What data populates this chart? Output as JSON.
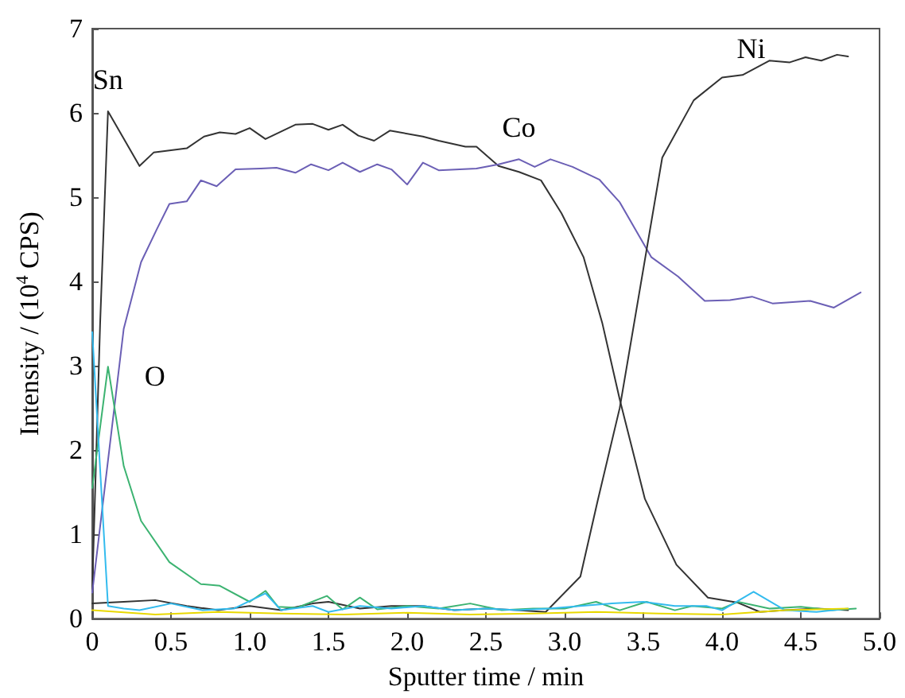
{
  "chart_data": {
    "type": "line",
    "xlabel": "Sputter time / min",
    "ylabel": "Intensity / (10$^{4}$ CPS)",
    "xlim": [
      0,
      5
    ],
    "xticks": [
      0,
      {
        "value": 0.5,
        "label": "0.5"
      },
      {
        "value": 1,
        "label": "1.0"
      },
      {
        "value": 1.5,
        "label": "1.5"
      },
      {
        "value": 2,
        "label": "2.0"
      },
      {
        "value": 2.5,
        "label": "2.5"
      },
      {
        "value": 3,
        "label": "3.0"
      },
      {
        "value": 3.5,
        "label": "3.5"
      },
      {
        "value": 4,
        "label": "4.0"
      },
      {
        "value": 4.5,
        "label": "4.5"
      },
      {
        "value": 5,
        "label": "5.0"
      }
    ],
    "ylim": [
      0,
      7
    ],
    "yticks": [
      0,
      1,
      2,
      3,
      4,
      5,
      6,
      7
    ],
    "grid": false,
    "legend": false,
    "marker": "none",
    "line_style": "solid",
    "series": [
      {
        "name": "Sn",
        "color": "#333333",
        "x": [
          0,
          0.05,
          0.1,
          0.3,
          0.39,
          0.6,
          0.71,
          0.81,
          0.91,
          1.0,
          1.1,
          1.29,
          1.4,
          1.5,
          1.59,
          1.69,
          1.79,
          1.89,
          2.1,
          2.2,
          2.37,
          2.44,
          2.58,
          2.71,
          2.85,
          2.98,
          3.12,
          3.24,
          3.35,
          3.51,
          3.71,
          3.91,
          4.1,
          4.24,
          4.4,
          4.6,
          4.8
        ],
        "values": [
          0.35,
          3.5,
          6.02,
          5.37,
          5.53,
          5.58,
          5.72,
          5.77,
          5.75,
          5.82,
          5.69,
          5.86,
          5.87,
          5.8,
          5.86,
          5.73,
          5.67,
          5.79,
          5.72,
          5.67,
          5.6,
          5.6,
          5.37,
          5.3,
          5.2,
          4.81,
          4.29,
          3.5,
          2.6,
          1.42,
          0.64,
          0.25,
          0.19,
          0.08,
          0.1,
          0.12,
          0.1
        ]
      },
      {
        "name": "Co",
        "color": "#6b5fb5",
        "x": [
          0,
          0.2,
          0.31,
          0.41,
          0.49,
          0.6,
          0.69,
          0.79,
          0.91,
          1.07,
          1.17,
          1.29,
          1.39,
          1.5,
          1.59,
          1.7,
          1.81,
          1.9,
          2.0,
          2.1,
          2.2,
          2.44,
          2.58,
          2.71,
          2.81,
          2.91,
          3.05,
          3.22,
          3.35,
          3.55,
          3.72,
          3.89,
          4.05,
          4.19,
          4.32,
          4.56,
          4.71,
          4.88
        ],
        "values": [
          0.31,
          3.44,
          4.23,
          4.62,
          4.92,
          4.95,
          5.2,
          5.13,
          5.33,
          5.34,
          5.35,
          5.29,
          5.39,
          5.32,
          5.41,
          5.3,
          5.39,
          5.33,
          5.15,
          5.41,
          5.32,
          5.34,
          5.39,
          5.45,
          5.36,
          5.45,
          5.36,
          5.21,
          4.94,
          4.29,
          4.06,
          3.77,
          3.78,
          3.82,
          3.74,
          3.77,
          3.69,
          3.87
        ]
      },
      {
        "name": "Ni",
        "color": "#333333",
        "x": [
          0,
          0.2,
          0.4,
          0.6,
          0.8,
          1.0,
          1.2,
          1.4,
          1.5,
          1.7,
          1.9,
          2.1,
          2.3,
          2.5,
          2.7,
          2.88,
          3.1,
          3.21,
          3.35,
          3.62,
          3.82,
          4.0,
          4.13,
          4.3,
          4.43,
          4.53,
          4.63,
          4.73,
          4.8
        ],
        "values": [
          0.18,
          0.2,
          0.22,
          0.15,
          0.1,
          0.15,
          0.1,
          0.18,
          0.2,
          0.12,
          0.15,
          0.15,
          0.1,
          0.12,
          0.1,
          0.08,
          0.5,
          1.4,
          2.5,
          5.47,
          6.15,
          6.42,
          6.45,
          6.62,
          6.6,
          6.66,
          6.62,
          6.69,
          6.67
        ]
      },
      {
        "name": "O",
        "color": "#3cb371",
        "x": [
          0,
          0.1,
          0.2,
          0.31,
          0.49,
          0.69,
          0.81,
          1.0,
          1.1,
          1.18,
          1.3,
          1.49,
          1.59,
          1.7,
          1.81,
          2.0,
          2.2,
          2.4,
          2.6,
          2.8,
          3.0,
          3.2,
          3.35,
          3.52,
          3.7,
          3.81,
          4.0,
          4.1,
          4.3,
          4.5,
          4.7,
          4.85
        ],
        "values": [
          1.55,
          2.99,
          1.81,
          1.16,
          0.67,
          0.41,
          0.39,
          0.2,
          0.33,
          0.14,
          0.13,
          0.27,
          0.11,
          0.25,
          0.11,
          0.15,
          0.12,
          0.18,
          0.1,
          0.12,
          0.12,
          0.2,
          0.1,
          0.2,
          0.1,
          0.15,
          0.12,
          0.2,
          0.12,
          0.14,
          0.1,
          0.12
        ]
      },
      {
        "color": "#33bbee",
        "x": [
          0,
          0.1,
          0.2,
          0.3,
          0.5,
          0.7,
          0.9,
          1.1,
          1.2,
          1.4,
          1.5,
          1.7,
          1.9,
          2.1,
          2.3,
          2.5,
          2.7,
          2.9,
          3.1,
          3.3,
          3.5,
          3.7,
          3.9,
          4.0,
          4.2,
          4.4,
          4.6,
          4.8
        ],
        "values": [
          3.4,
          0.15,
          0.12,
          0.1,
          0.18,
          0.1,
          0.12,
          0.3,
          0.1,
          0.15,
          0.08,
          0.15,
          0.12,
          0.15,
          0.1,
          0.12,
          0.1,
          0.12,
          0.15,
          0.18,
          0.2,
          0.15,
          0.15,
          0.1,
          0.32,
          0.1,
          0.08,
          0.12
        ]
      },
      {
        "color": "#e8d800",
        "x": [
          0,
          0.4,
          0.8,
          1.2,
          1.6,
          2.0,
          2.4,
          2.8,
          3.2,
          3.6,
          4.0,
          4.4,
          4.8
        ],
        "values": [
          0.1,
          0.05,
          0.08,
          0.06,
          0.05,
          0.07,
          0.05,
          0.06,
          0.08,
          0.06,
          0.05,
          0.1,
          0.12
        ]
      }
    ]
  }
}
